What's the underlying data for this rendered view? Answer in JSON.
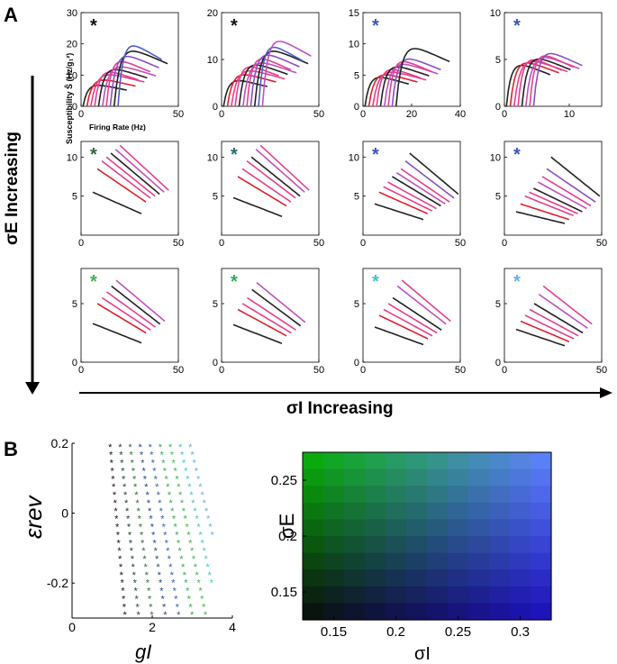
{
  "panel_a": {
    "letter": "A",
    "ylabel": "Susceptibility Ŝ  (Hz/g₁²)",
    "xlabel": "Firing Rate (Hz)",
    "row_axis_label": "σE  Increasing",
    "col_axis_label": "σI  Increasing"
  },
  "panel_b": {
    "letter": "B",
    "scatter_ylabel": "εrev",
    "scatter_xlabel": "gI",
    "heatmap_ylabel": "σE",
    "heatmap_xlabel": "σI"
  },
  "colors": {
    "black_star": "#111111",
    "dark_green_star": "#2f6b3b",
    "teal_dark_star": "#2a6a70",
    "blue_star": "#3a55b8",
    "green_star": "#3cb54a",
    "mid_green_star": "#37a85a",
    "cyan_star": "#40c8c8",
    "light_blue_star": "#6aaee8",
    "curve_red": "#e0202a",
    "curve_pink": "#e83e8c",
    "curve_magenta": "#c050c0",
    "curve_purple": "#8a4fc8",
    "curve_blue": "#4e5fc8",
    "curve_black": "#222222"
  },
  "chart_data": [
    {
      "type": "line",
      "grid_of_panels": "3x4",
      "panels": [
        {
          "row": 0,
          "col": 0,
          "star_color": "#111111",
          "xlim": [
            0,
            50
          ],
          "ylim": [
            0,
            30
          ],
          "xticks": [
            0,
            50
          ],
          "yticks": [
            0,
            10,
            20,
            30
          ],
          "peak_x": 8,
          "curve_peaks": [
            8,
            10,
            12,
            13,
            14,
            15,
            17,
            19,
            21,
            23
          ]
        },
        {
          "row": 0,
          "col": 1,
          "star_color": "#111111",
          "xlim": [
            0,
            50
          ],
          "ylim": [
            0,
            20
          ],
          "xticks": [
            0,
            50
          ],
          "yticks": [
            0,
            10,
            20
          ],
          "peak_x": 8,
          "curve_peaks": [
            6.5,
            8,
            9,
            10,
            10.5,
            11,
            12,
            13,
            14,
            15,
            16.5
          ]
        },
        {
          "row": 0,
          "col": 2,
          "star_color": "#3a55b8",
          "xlim": [
            0,
            40
          ],
          "ylim": [
            0,
            15
          ],
          "xticks": [
            0,
            20,
            40
          ],
          "yticks": [
            0,
            5,
            10,
            15
          ],
          "peak_x": 6,
          "curve_peaks": [
            5.5,
            6,
            6.5,
            7,
            7.5,
            8,
            8.5,
            9,
            11
          ]
        },
        {
          "row": 0,
          "col": 3,
          "star_color": "#3a55b8",
          "xlim": [
            0,
            15
          ],
          "ylim": [
            0,
            10
          ],
          "xticks": [
            0,
            10
          ],
          "yticks": [
            0,
            5,
            10
          ],
          "peak_x": 3,
          "curve_peaks": [
            5.2,
            5.5,
            5.7,
            5.9,
            6,
            6.2,
            6.4,
            6.7
          ]
        },
        {
          "row": 1,
          "col": 0,
          "star_color": "#2f6b3b",
          "xlim": [
            0,
            50
          ],
          "ylim": [
            0,
            12
          ],
          "xticks": [
            0,
            50
          ],
          "yticks": [
            5,
            10
          ],
          "curve_peaks": [
            5.5,
            8.5,
            9.5,
            10,
            10.5,
            11,
            11.5
          ]
        },
        {
          "row": 1,
          "col": 1,
          "star_color": "#2a6a70",
          "xlim": [
            0,
            50
          ],
          "ylim": [
            0,
            12
          ],
          "xticks": [
            0,
            50
          ],
          "yticks": [
            5,
            10
          ],
          "curve_peaks": [
            4.8,
            7.5,
            8.5,
            9.5,
            10,
            11,
            11.5
          ]
        },
        {
          "row": 1,
          "col": 2,
          "star_color": "#3a55b8",
          "xlim": [
            0,
            50
          ],
          "ylim": [
            0,
            12
          ],
          "xticks": [
            0,
            50
          ],
          "yticks": [
            5,
            10
          ],
          "curve_peaks": [
            4,
            5.5,
            6.2,
            6.8,
            7.5,
            8,
            8.5,
            9.5,
            10.5
          ]
        },
        {
          "row": 1,
          "col": 3,
          "star_color": "#3a55b8",
          "xlim": [
            0,
            50
          ],
          "ylim": [
            0,
            12
          ],
          "xticks": [
            0,
            50
          ],
          "yticks": [
            5,
            10
          ],
          "curve_peaks": [
            3,
            4,
            5,
            5.5,
            6,
            6.8,
            7.5,
            8.5,
            10
          ]
        },
        {
          "row": 2,
          "col": 0,
          "star_color": "#3cb54a",
          "xlim": [
            0,
            50
          ],
          "ylim": [
            0,
            8
          ],
          "xticks": [
            0,
            50
          ],
          "yticks": [
            0,
            5
          ],
          "curve_peaks": [
            3.3,
            5,
            5.5,
            6,
            6.5,
            7
          ]
        },
        {
          "row": 2,
          "col": 1,
          "star_color": "#37a85a",
          "xlim": [
            0,
            50
          ],
          "ylim": [
            0,
            8
          ],
          "xticks": [
            0,
            50
          ],
          "yticks": [
            0,
            5
          ],
          "curve_peaks": [
            3.2,
            4.5,
            5,
            5.5,
            6.2,
            6.8
          ]
        },
        {
          "row": 2,
          "col": 2,
          "star_color": "#40c8c8",
          "xlim": [
            0,
            50
          ],
          "ylim": [
            0,
            8
          ],
          "xticks": [
            0,
            50
          ],
          "yticks": [
            0,
            5
          ],
          "curve_peaks": [
            3,
            4,
            4.5,
            5,
            5.5,
            6.5,
            7
          ]
        },
        {
          "row": 2,
          "col": 3,
          "star_color": "#6aaee8",
          "xlim": [
            0,
            50
          ],
          "ylim": [
            0,
            8
          ],
          "xticks": [
            0,
            50
          ],
          "yticks": [
            0,
            5
          ],
          "curve_peaks": [
            2.8,
            3.5,
            4,
            4.5,
            5,
            5.8,
            6.5
          ]
        }
      ]
    },
    {
      "type": "scatter",
      "xlabel": "gI",
      "ylabel": "εrev",
      "xlim": [
        0,
        4
      ],
      "ylim": [
        -0.3,
        0.2
      ],
      "xticks": [
        0,
        2,
        4
      ],
      "yticks": [
        -0.2,
        0,
        0.2
      ]
    },
    {
      "type": "heatmap",
      "xlabel": "σI",
      "ylabel": "σE",
      "xlim": [
        0.125,
        0.325
      ],
      "ylim": [
        0.125,
        0.275
      ],
      "xticks": [
        0.15,
        0.2,
        0.25,
        0.3
      ],
      "yticks": [
        0.15,
        0.2,
        0.25
      ]
    }
  ]
}
